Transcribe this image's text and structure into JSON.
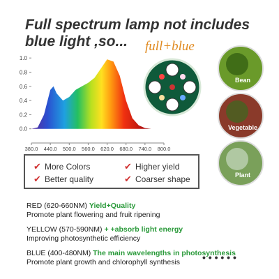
{
  "header": {
    "title_lines": [
      "Full spectrum lamp not includes",
      "blue light ,so..."
    ]
  },
  "chart_data": {
    "type": "area",
    "x": [
      380,
      400,
      420,
      440,
      450,
      460,
      480,
      500,
      520,
      540,
      560,
      580,
      600,
      620,
      640,
      660,
      680,
      700,
      720,
      740,
      760,
      800
    ],
    "values": [
      0,
      0.02,
      0.2,
      0.55,
      0.6,
      0.5,
      0.4,
      0.45,
      0.55,
      0.6,
      0.65,
      0.72,
      0.85,
      0.98,
      0.95,
      0.75,
      0.4,
      0.15,
      0.05,
      0.01,
      0,
      0
    ],
    "xlim": [
      380,
      800
    ],
    "ylim": [
      -0.2,
      1.1
    ],
    "xticks": [
      {
        "value": 380,
        "label": "380.0"
      },
      {
        "value": 440,
        "label": "440.0"
      },
      {
        "value": 500,
        "label": "500.0"
      },
      {
        "value": 560,
        "label": "560.0"
      },
      {
        "value": 620,
        "label": "620.0"
      },
      {
        "value": 680,
        "label": "680.0"
      },
      {
        "value": 740,
        "label": "740.0"
      },
      {
        "value": 800,
        "label": "800.0"
      }
    ],
    "yticks": [
      {
        "value": 0,
        "label": "0.0"
      },
      0.2,
      0.4,
      0.6,
      0.8,
      {
        "value": 1,
        "label": "1.0"
      }
    ]
  },
  "badge": "full+blue",
  "photos": [
    "Bean",
    "Vegetable",
    "Plant"
  ],
  "features": [
    "More Colors",
    "Higher yield",
    "Better quality",
    "Coarser shape"
  ],
  "bands": [
    {
      "name": "RED (620-660NM)",
      "highlight": "Yield+Quality",
      "description": "Promote plant flowering and fruit ripening"
    },
    {
      "name": "YELLOW (570-590NM)",
      "highlight": "+ +absorb light energy",
      "description": "Improving photosynthetic efficiency"
    },
    {
      "name": "BLUE (400-480NM)",
      "highlight": "The main wavelengths in photosynthesis",
      "description": "Promote plant growth and chlorophyll synthesis"
    }
  ]
}
